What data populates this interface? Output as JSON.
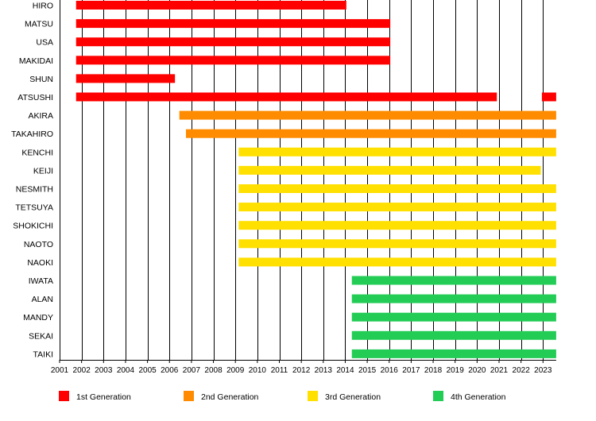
{
  "chart_data": {
    "type": "bar",
    "orientation": "horizontal",
    "subtype": "timeline",
    "title": "",
    "xlabel": "",
    "ylabel": "",
    "xlim": [
      2001.0,
      2023.6
    ],
    "x_ticks": [
      "2001",
      "2002",
      "2003",
      "2004",
      "2005",
      "2006",
      "2007",
      "2008",
      "2009",
      "2010",
      "2011",
      "2012",
      "2013",
      "2014",
      "2015",
      "2016",
      "2017",
      "2018",
      "2019",
      "2020",
      "2021",
      "2022",
      "2023"
    ],
    "grid": "vertical",
    "legend_position": "bottom",
    "categories": [
      "HIRO",
      "MATSU",
      "USA",
      "MAKIDAI",
      "SHUN",
      "ATSUSHI",
      "AKIRA",
      "TAKAHIRO",
      "KENCHI",
      "KEIJI",
      "NESMITH",
      "TETSUYA",
      "SHOKICHI",
      "NAOTO",
      "NAOKI",
      "IWATA",
      "ALAN",
      "MANDY",
      "SEKAI",
      "TAIKI"
    ],
    "series": [
      {
        "name": "1st Generation",
        "color": "#ff0000"
      },
      {
        "name": "2nd Generation",
        "color": "#ff8c00"
      },
      {
        "name": "3rd Generation",
        "color": "#ffe000"
      },
      {
        "name": "4th Generation",
        "color": "#22cc55"
      }
    ],
    "periods": [
      {
        "member": "HIRO",
        "series": 0,
        "start": 2001.75,
        "end": 2014.05
      },
      {
        "member": "MATSU",
        "series": 0,
        "start": 2001.75,
        "end": 2016.05
      },
      {
        "member": "USA",
        "series": 0,
        "start": 2001.75,
        "end": 2016.05
      },
      {
        "member": "MAKIDAI",
        "series": 0,
        "start": 2001.75,
        "end": 2016.05
      },
      {
        "member": "SHUN",
        "series": 0,
        "start": 2001.75,
        "end": 2006.25
      },
      {
        "member": "ATSUSHI",
        "series": 0,
        "start": 2001.75,
        "end": 2020.9
      },
      {
        "member": "ATSUSHI",
        "series": 0,
        "start": 2022.95,
        "end": 2023.6
      },
      {
        "member": "AKIRA",
        "series": 1,
        "start": 2006.45,
        "end": 2023.6
      },
      {
        "member": "TAKAHIRO",
        "series": 1,
        "start": 2006.75,
        "end": 2023.6
      },
      {
        "member": "KENCHI",
        "series": 2,
        "start": 2009.15,
        "end": 2023.6
      },
      {
        "member": "KEIJI",
        "series": 2,
        "start": 2009.15,
        "end": 2022.9
      },
      {
        "member": "NESMITH",
        "series": 2,
        "start": 2009.15,
        "end": 2023.6
      },
      {
        "member": "TETSUYA",
        "series": 2,
        "start": 2009.15,
        "end": 2023.6
      },
      {
        "member": "SHOKICHI",
        "series": 2,
        "start": 2009.15,
        "end": 2023.6
      },
      {
        "member": "NAOTO",
        "series": 2,
        "start": 2009.15,
        "end": 2023.6
      },
      {
        "member": "NAOKI",
        "series": 2,
        "start": 2009.15,
        "end": 2023.6
      },
      {
        "member": "IWATA",
        "series": 3,
        "start": 2014.3,
        "end": 2023.6
      },
      {
        "member": "ALAN",
        "series": 3,
        "start": 2014.3,
        "end": 2023.6
      },
      {
        "member": "MANDY",
        "series": 3,
        "start": 2014.3,
        "end": 2023.6
      },
      {
        "member": "SEKAI",
        "series": 3,
        "start": 2014.3,
        "end": 2023.6
      },
      {
        "member": "TAIKI",
        "series": 3,
        "start": 2014.3,
        "end": 2023.6
      }
    ]
  }
}
